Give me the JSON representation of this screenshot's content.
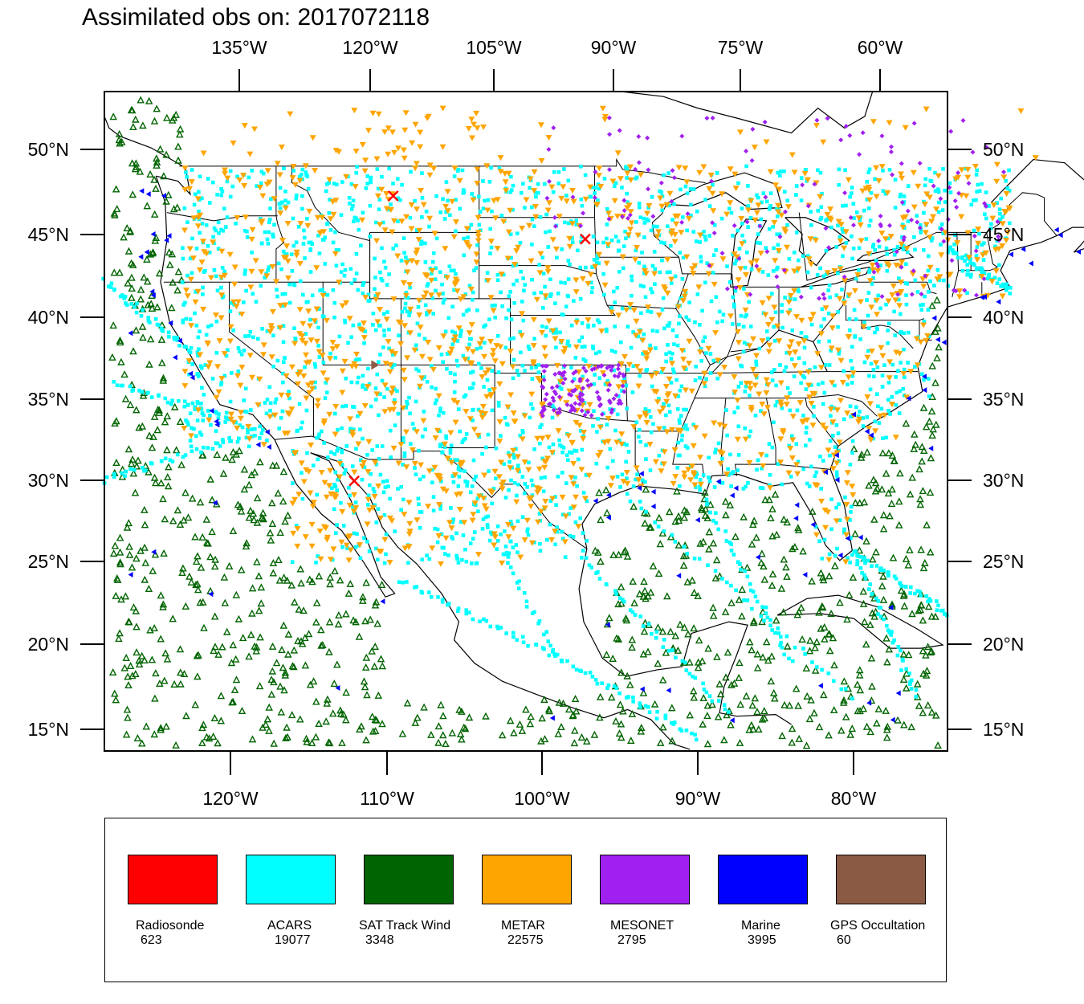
{
  "title": "Assimilated obs on: 2017072118",
  "map": {
    "top_axis_labels": [
      "135°W",
      "120°W",
      "105°W",
      "90°W",
      "75°W",
      "60°W"
    ],
    "bottom_axis_labels": [
      "120°W",
      "110°W",
      "100°W",
      "90°W",
      "80°W"
    ],
    "lat_labels": [
      "50°N",
      "45°N",
      "40°N",
      "35°N",
      "30°N",
      "25°N",
      "20°N",
      "15°N"
    ],
    "lon_range": [
      -128,
      -74
    ],
    "lat_range": [
      13.7,
      53.5
    ]
  },
  "legend": [
    {
      "name": "Radiosonde",
      "count": "623",
      "color": "#ff0000",
      "marker": "x-mark"
    },
    {
      "name": "ACARS",
      "count": "19077",
      "color": "#00ffff",
      "marker": "square"
    },
    {
      "name": "SAT Track Wind",
      "count": "3348",
      "color": "#006400",
      "marker": "triangle-up-open"
    },
    {
      "name": "METAR",
      "count": "22575",
      "color": "#ffa500",
      "marker": "triangle-down"
    },
    {
      "name": "MESONET",
      "count": "2795",
      "color": "#a020f0",
      "marker": "diamond"
    },
    {
      "name": "Marine",
      "count": "3995",
      "color": "#0000ff",
      "marker": "triangle-left"
    },
    {
      "name": "GPS Occultation",
      "count": "60",
      "color": "#8b5a44",
      "marker": "triangle-right"
    }
  ]
}
